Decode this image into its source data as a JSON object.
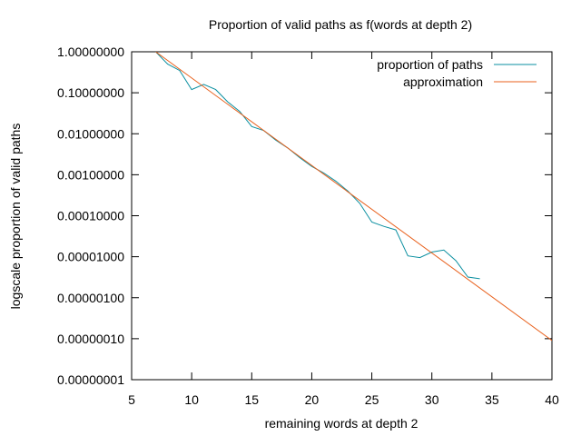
{
  "chart_data": {
    "type": "line",
    "title": "Proportion of valid paths as f(words at depth 2)",
    "xlabel": "remaining words at depth 2",
    "ylabel": "logscale proportion of valid paths",
    "xlim": [
      5,
      40
    ],
    "ylim": [
      1e-08,
      1.0
    ],
    "yscale": "log",
    "x_ticks": [
      5,
      10,
      15,
      20,
      25,
      30,
      35,
      40
    ],
    "y_ticks": [
      1,
      0.1,
      0.01,
      0.001,
      0.0001,
      1e-05,
      1e-06,
      1e-07,
      1e-08
    ],
    "y_tick_labels": [
      "1.00000000",
      "0.10000000",
      "0.01000000",
      "0.00100000",
      "0.00010000",
      "0.00001000",
      "0.00000100",
      "0.00000010",
      "0.00000001"
    ],
    "grid": false,
    "legend_position": "top-right",
    "series": [
      {
        "name": "proportion of paths",
        "color": "#0a8fa0",
        "x": [
          7,
          8,
          9,
          10,
          11,
          12,
          13,
          14,
          15,
          16,
          17,
          18,
          19,
          20,
          21,
          22,
          23,
          24,
          25,
          26,
          27,
          28,
          29,
          30,
          31,
          32,
          33,
          34
        ],
        "y": [
          1.0,
          0.5,
          0.35,
          0.12,
          0.16,
          0.12,
          0.06,
          0.035,
          0.015,
          0.012,
          0.007,
          0.0045,
          0.0026,
          0.0016,
          0.0011,
          0.0007,
          0.0004,
          0.0002,
          7e-05,
          5.5e-05,
          4.5e-05,
          1.05e-05,
          9.5e-06,
          1.3e-05,
          1.45e-05,
          8e-06,
          3.2e-06,
          2.9e-06
        ]
      },
      {
        "name": "approximation",
        "color": "#e8601c",
        "x": [
          7,
          40
        ],
        "y": [
          1.0,
          9e-08
        ]
      }
    ]
  }
}
